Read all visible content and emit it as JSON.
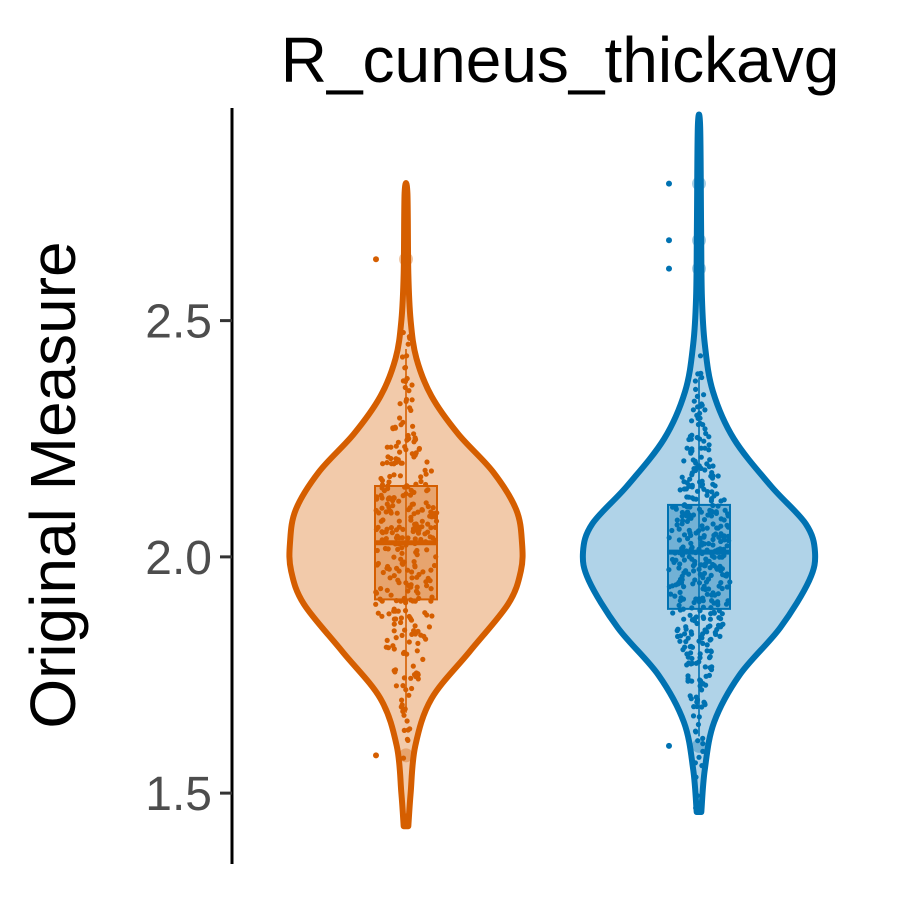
{
  "chart_data": {
    "type": "violin",
    "title": "R_cuneus_thickavg",
    "xlabel": "",
    "ylabel": "Original Measure",
    "ylim": [
      1.35,
      2.95
    ],
    "yticks": [
      1.5,
      2.0,
      2.5
    ],
    "ytick_labels": [
      "1.5",
      "2.0",
      "2.5"
    ],
    "grid": false,
    "legend": "none",
    "series": [
      {
        "color": "#D55E00",
        "fill": "#F2CAAA",
        "min": 1.43,
        "max": 2.77,
        "q1": 1.91,
        "median": 2.03,
        "q3": 2.15,
        "whisker_low": 1.67,
        "whisker_high": 2.44,
        "outliers": [
          2.63,
          1.58
        ],
        "density": [
          [
            1.43,
            0.02
          ],
          [
            1.5,
            0.04
          ],
          [
            1.6,
            0.08
          ],
          [
            1.7,
            0.22
          ],
          [
            1.8,
            0.55
          ],
          [
            1.9,
            0.88
          ],
          [
            1.97,
            0.99
          ],
          [
            2.03,
            1.0
          ],
          [
            2.1,
            0.95
          ],
          [
            2.18,
            0.75
          ],
          [
            2.26,
            0.45
          ],
          [
            2.34,
            0.22
          ],
          [
            2.42,
            0.09
          ],
          [
            2.5,
            0.04
          ],
          [
            2.6,
            0.02
          ],
          [
            2.77,
            0.012
          ]
        ]
      },
      {
        "color": "#0072B2",
        "fill": "#B0D3E8",
        "min": 1.46,
        "max": 2.91,
        "q1": 1.89,
        "median": 2.01,
        "q3": 2.11,
        "whisker_low": 1.62,
        "whisker_high": 2.38,
        "outliers": [
          2.79,
          2.67,
          2.61,
          1.6
        ],
        "density": [
          [
            1.46,
            0.02
          ],
          [
            1.55,
            0.05
          ],
          [
            1.65,
            0.13
          ],
          [
            1.75,
            0.35
          ],
          [
            1.85,
            0.7
          ],
          [
            1.95,
            0.95
          ],
          [
            2.01,
            1.0
          ],
          [
            2.07,
            0.92
          ],
          [
            2.15,
            0.62
          ],
          [
            2.25,
            0.3
          ],
          [
            2.35,
            0.12
          ],
          [
            2.45,
            0.05
          ],
          [
            2.55,
            0.025
          ],
          [
            2.7,
            0.018
          ],
          [
            2.91,
            0.01
          ]
        ]
      }
    ]
  }
}
